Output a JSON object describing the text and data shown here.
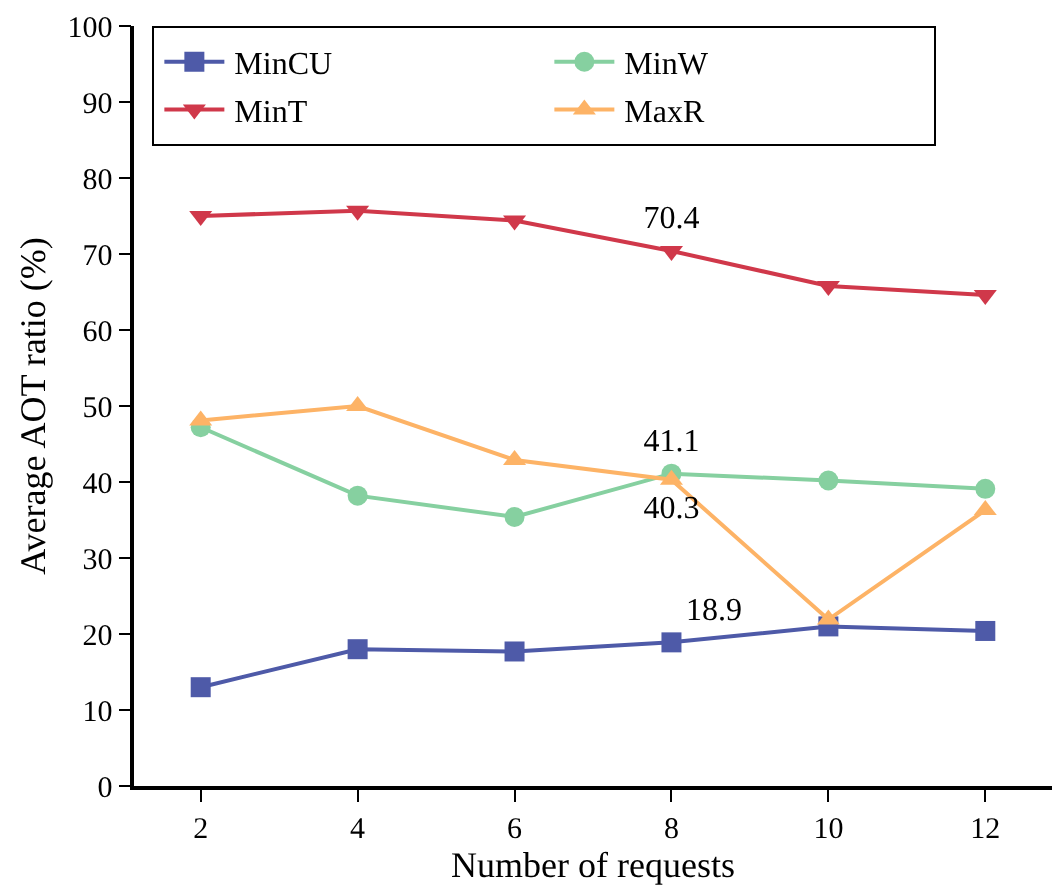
{
  "chart_data": {
    "type": "line",
    "xlabel": "Number of requests",
    "ylabel": "Average AOT ratio (%)",
    "x": [
      2,
      4,
      6,
      8,
      10,
      12
    ],
    "series": [
      {
        "name": "MinCU",
        "color": "#4e5aa8",
        "marker": "square",
        "values": [
          13.0,
          18.0,
          17.7,
          18.9,
          21.0,
          20.4
        ],
        "value_labels": [
          null,
          null,
          null,
          "18.9",
          null,
          null
        ]
      },
      {
        "name": "MinW",
        "color": "#86d0a0",
        "marker": "circle",
        "values": [
          47.2,
          38.2,
          35.4,
          41.1,
          40.2,
          39.1
        ],
        "value_labels": [
          null,
          null,
          null,
          "41.1",
          null,
          null
        ]
      },
      {
        "name": "MinT",
        "color": "#d0384a",
        "marker": "triangle-down",
        "values": [
          75.0,
          75.7,
          74.4,
          70.4,
          65.8,
          64.6
        ],
        "value_labels": [
          null,
          null,
          null,
          "70.4",
          null,
          null
        ]
      },
      {
        "name": "MaxR",
        "color": "#fdb366",
        "marker": "triangle",
        "values": [
          48.1,
          50.0,
          42.9,
          40.3,
          21.9,
          36.3
        ],
        "value_labels": [
          null,
          null,
          null,
          "40.3",
          null,
          null
        ]
      }
    ],
    "xlim": [
      1.15,
      12.85
    ],
    "xticks": [
      2,
      4,
      6,
      8,
      10,
      12
    ],
    "ylim": [
      0,
      100
    ],
    "yticks": [
      0,
      10,
      20,
      30,
      40,
      50,
      60,
      70,
      80,
      90,
      100
    ],
    "grid": false,
    "legend": "top left",
    "line_style": "solid"
  }
}
